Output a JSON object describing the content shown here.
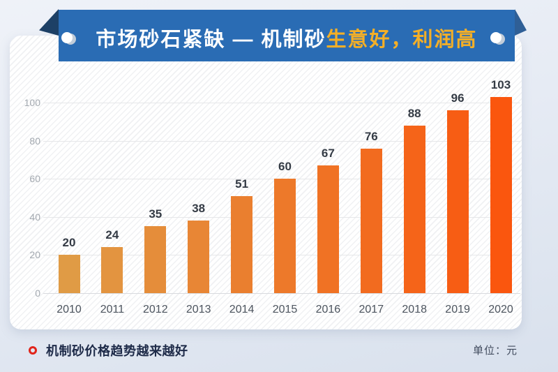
{
  "banner": {
    "title_white": "市场砂石紧缺 — 机制砂",
    "title_yellow": "生意好，利润高"
  },
  "footer": {
    "caption": "机制砂价格趋势越来越好",
    "unit": "单位：元"
  },
  "colors": {
    "banner_blue": "#2a6cb4",
    "fold_left": "#1d4066",
    "fold_right": "#2f5f96",
    "accent_yellow": "#f4af27",
    "bullet_red": "#e1251b",
    "bar_start": "#e09b45",
    "bar_end": "#fa560e"
  },
  "chart_data": {
    "type": "bar",
    "title": "市场砂石紧缺 — 机制砂生意好，利润高",
    "subtitle": "机制砂价格趋势越来越好",
    "categories": [
      "2010",
      "2011",
      "2012",
      "2013",
      "2014",
      "2015",
      "2016",
      "2017",
      "2018",
      "2019",
      "2020"
    ],
    "values": [
      20,
      24,
      35,
      38,
      51,
      60,
      67,
      76,
      88,
      96,
      103
    ],
    "bar_colors": [
      "#e09b45",
      "#e39440",
      "#e58d3a",
      "#e88635",
      "#ea7f2f",
      "#ed792a",
      "#f07224",
      "#f26b1f",
      "#f56419",
      "#f75d14",
      "#fa560e"
    ],
    "yticks": [
      0,
      20,
      40,
      60,
      80,
      100
    ],
    "ylim": [
      0,
      110
    ],
    "xlabel": "",
    "ylabel": "",
    "unit": "元",
    "grid": true,
    "legend": false,
    "data_labels": true
  }
}
